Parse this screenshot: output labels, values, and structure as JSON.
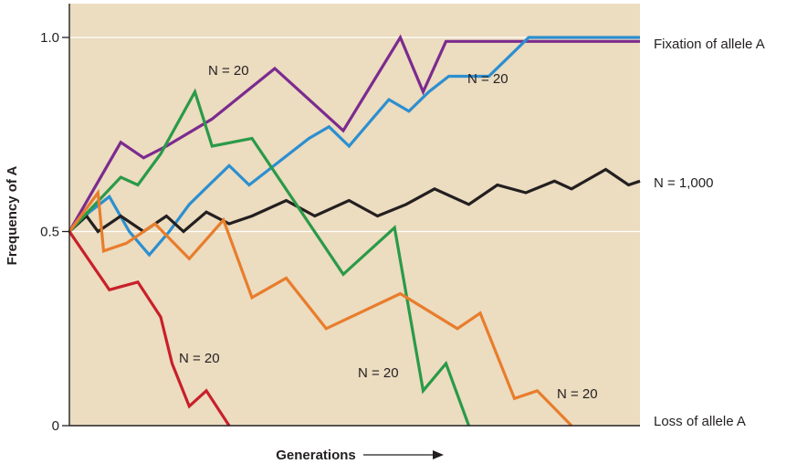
{
  "chart_data": {
    "type": "line",
    "ylabel": "Frequency of A",
    "xlabel": "Generations",
    "ylim": [
      0,
      1.07
    ],
    "xlim": [
      0,
      100
    ],
    "yticks": [
      {
        "value": 0,
        "label": "0"
      },
      {
        "value": 0.5,
        "label": "0.5"
      },
      {
        "value": 1.0,
        "label": "1.0"
      }
    ],
    "grid": "horizontal lines at 0.5 and 1.0",
    "annotations": {
      "fixation": "Fixation of allele A",
      "loss": "Loss of allele A",
      "n1000": "N = 1,000"
    },
    "colors": {
      "background": "#ecdcc0",
      "purple": "#7b2b8e",
      "blue": "#2c8fd0",
      "black": "#231f20",
      "green": "#2a9a48",
      "orange": "#e87d2c",
      "red": "#c8202a"
    },
    "series": [
      {
        "key": "purple",
        "label": "N = 20",
        "color": "#7b2b8e",
        "x": [
          0,
          9,
          13,
          17,
          25,
          36,
          48,
          58,
          62,
          66,
          100
        ],
        "y": [
          0.5,
          0.73,
          0.69,
          0.72,
          0.79,
          0.92,
          0.76,
          1.0,
          0.86,
          0.99,
          0.99
        ]
      },
      {
        "key": "blue",
        "label": "N = 20",
        "color": "#2c8fd0",
        "x": [
          0,
          3.5,
          7,
          10.5,
          14,
          17.5,
          21,
          24.5,
          28,
          31.5,
          35,
          38.5,
          42,
          45.5,
          49,
          52.5,
          56,
          59.5,
          63,
          66.5,
          70,
          73.5,
          77,
          80.5,
          84,
          87.5,
          91,
          94.5,
          98,
          100
        ],
        "y": [
          0.5,
          0.55,
          0.59,
          0.5,
          0.44,
          0.5,
          0.57,
          0.62,
          0.67,
          0.62,
          0.66,
          0.7,
          0.74,
          0.77,
          0.72,
          0.78,
          0.84,
          0.81,
          0.86,
          0.9,
          0.9,
          0.9,
          0.95,
          1.0,
          1.0,
          1.0,
          1.0,
          1.0,
          1.0,
          1.0
        ]
      },
      {
        "key": "black",
        "label": "N = 1,000",
        "color": "#231f20",
        "x": [
          0,
          3,
          5,
          9,
          13,
          17,
          20,
          24,
          28,
          32,
          38,
          43,
          49,
          54,
          59,
          64,
          70,
          75,
          80,
          85,
          88,
          94,
          98,
          100
        ],
        "y": [
          0.5,
          0.54,
          0.5,
          0.54,
          0.5,
          0.54,
          0.5,
          0.55,
          0.52,
          0.54,
          0.58,
          0.54,
          0.58,
          0.54,
          0.57,
          0.61,
          0.57,
          0.62,
          0.6,
          0.63,
          0.61,
          0.66,
          0.62,
          0.63
        ]
      },
      {
        "key": "green",
        "label": "N = 20",
        "color": "#2a9a48",
        "x": [
          0,
          9,
          12,
          16,
          22,
          25,
          32,
          48,
          57,
          62,
          66,
          70
        ],
        "y": [
          0.5,
          0.64,
          0.62,
          0.7,
          0.86,
          0.72,
          0.74,
          0.39,
          0.51,
          0.09,
          0.16,
          0.0
        ]
      },
      {
        "key": "orange",
        "label": "N = 20",
        "color": "#e87d2c",
        "x": [
          0,
          5,
          6,
          10,
          15,
          21,
          27,
          32,
          38,
          45,
          58,
          68,
          72,
          78,
          82,
          88
        ],
        "y": [
          0.5,
          0.6,
          0.45,
          0.47,
          0.52,
          0.43,
          0.53,
          0.33,
          0.38,
          0.25,
          0.34,
          0.25,
          0.29,
          0.07,
          0.09,
          0.0
        ]
      },
      {
        "key": "red",
        "label": "N = 20",
        "color": "#c8202a",
        "x": [
          0,
          7,
          12,
          16,
          18,
          21,
          24,
          28
        ],
        "y": [
          0.5,
          0.35,
          0.37,
          0.28,
          0.16,
          0.05,
          0.09,
          0.0
        ]
      }
    ]
  }
}
